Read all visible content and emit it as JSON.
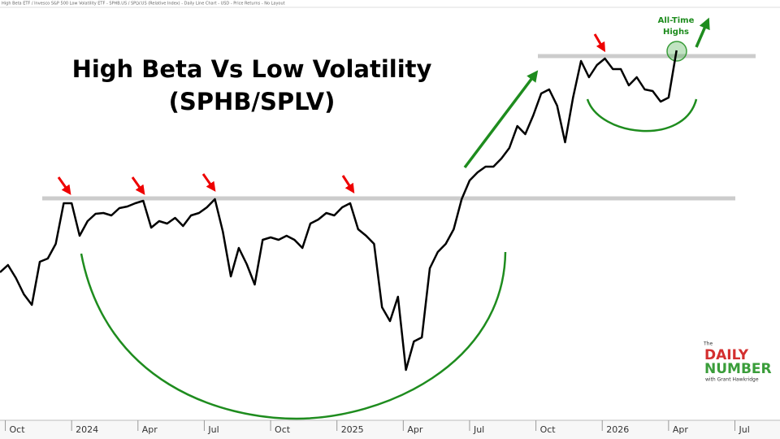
{
  "chart_data": {
    "type": "line",
    "header": "High Beta ETF / Invesco S&P 500 Low Volatility ETF - SPHB.US / SPLV.US (Relative Index) - Daily Line Chart - USD - Price Returns - No Layout",
    "title": "High Beta Vs Low Volatility",
    "subtitle": "(SPHB/SPLV)",
    "annotations": [
      "All-Time",
      "Highs"
    ],
    "logo": {
      "pre": "The",
      "line1": "DAILY",
      "line2": "NUMBER",
      "byline": "with Grant Hawkridge"
    },
    "color": "#000000",
    "x": [
      2023.73,
      2023.76,
      2023.79,
      2023.82,
      2023.85,
      2023.88,
      2023.91,
      2023.94,
      2023.97,
      2024.0,
      2024.03,
      2024.06,
      2024.09,
      2024.12,
      2024.15,
      2024.18,
      2024.21,
      2024.24,
      2024.27,
      2024.3,
      2024.33,
      2024.36,
      2024.39,
      2024.42,
      2024.45,
      2024.48,
      2024.51,
      2024.54,
      2024.57,
      2024.6,
      2024.63,
      2024.66,
      2024.69,
      2024.72,
      2024.75,
      2024.78,
      2024.81,
      2024.84,
      2024.87,
      2024.9,
      2024.93,
      2024.96,
      2024.99,
      2025.02,
      2025.05,
      2025.08,
      2025.11,
      2025.14,
      2025.17,
      2025.2,
      2025.23,
      2025.26,
      2025.29,
      2025.32,
      2025.35,
      2025.38,
      2025.41,
      2025.44,
      2025.47,
      2025.5,
      2025.53,
      2025.56,
      2025.59,
      2025.62,
      2025.65,
      2025.68,
      2025.71,
      2025.74,
      2025.77,
      2025.8,
      2025.83,
      2025.86,
      2025.89,
      2025.92,
      2025.95,
      2025.98,
      2026.01,
      2026.04,
      2026.07,
      2026.1,
      2026.13,
      2026.16,
      2026.19,
      2026.22,
      2026.25,
      2026.28
    ],
    "values": [
      205,
      214,
      198,
      178,
      165,
      218,
      222,
      240,
      290,
      290,
      250,
      268,
      277,
      278,
      275,
      284,
      286,
      290,
      293,
      260,
      268,
      265,
      272,
      262,
      275,
      278,
      285,
      295,
      255,
      200,
      235,
      215,
      190,
      245,
      248,
      245,
      250,
      245,
      235,
      265,
      270,
      278,
      275,
      285,
      290,
      258,
      250,
      240,
      162,
      145,
      175,
      85,
      120,
      125,
      210,
      230,
      240,
      258,
      295,
      318,
      328,
      335,
      335,
      345,
      358,
      385,
      375,
      398,
      425,
      430,
      410,
      365,
      420,
      465,
      445,
      460,
      468,
      455,
      455,
      435,
      445,
      430,
      428,
      415,
      420,
      478
    ],
    "xlim": [
      2023.73,
      2026.67
    ],
    "ylim": [
      0,
      540
    ],
    "xticks": [
      {
        "value": 2023.75,
        "label": "Oct"
      },
      2024,
      {
        "value": 2024.25,
        "label": "Apr"
      },
      {
        "value": 2024.5,
        "label": "Jul"
      },
      {
        "value": 2024.75,
        "label": "Oct"
      },
      2025,
      {
        "value": 2025.25,
        "label": "Apr"
      },
      {
        "value": 2025.5,
        "label": "Jul"
      },
      {
        "value": 2025.75,
        "label": "Oct"
      },
      2026,
      {
        "value": 2026.25,
        "label": "Apr"
      },
      {
        "value": 2026.5,
        "label": "Jul"
      }
    ]
  }
}
